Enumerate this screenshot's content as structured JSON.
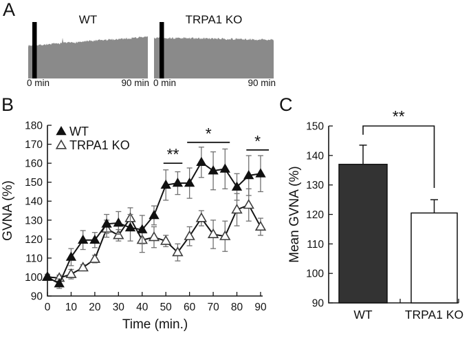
{
  "figure": {
    "background": "#ffffff",
    "text_color": "#111111"
  },
  "panels": {
    "a": {
      "label": "A",
      "trace_color": "#8a8a8a",
      "stim_bar_color": "#000000",
      "traces": [
        {
          "title": "WT",
          "start_label": "0 min",
          "end_label": "90 min"
        },
        {
          "title": "TRPA1 KO",
          "start_label": "0 min",
          "end_label": "90 min"
        }
      ]
    },
    "b": {
      "label": "B"
    },
    "c": {
      "label": "C"
    }
  },
  "chart_data": [
    {
      "panel": "B",
      "type": "line",
      "title": "",
      "xlabel": "Time (min.)",
      "ylabel": "GVNA (%)",
      "xlim": [
        0,
        90
      ],
      "ylim": [
        90,
        180
      ],
      "xticks": [
        0,
        10,
        20,
        30,
        40,
        50,
        60,
        70,
        80,
        90
      ],
      "yticks": [
        90,
        100,
        110,
        120,
        130,
        140,
        150,
        160,
        170,
        180
      ],
      "grid": false,
      "legend_position": "top-left",
      "error_bar_color": "#707070",
      "line_color": "#141414",
      "x": [
        0,
        5,
        10,
        15,
        20,
        25,
        30,
        35,
        40,
        45,
        50,
        55,
        60,
        65,
        70,
        75,
        80,
        85,
        90
      ],
      "series": [
        {
          "name": "WT",
          "marker": "filled-triangle",
          "marker_fill": "#111111",
          "marker_stroke": "#111111",
          "values": [
            100,
            96.5,
            110.5,
            119.5,
            119.5,
            128,
            128.5,
            126,
            125,
            132.5,
            148.5,
            149.5,
            149.5,
            160.5,
            156,
            157,
            147.5,
            153.5,
            154.5
          ],
          "errors": [
            1,
            2.5,
            4.5,
            5,
            4,
            5,
            6,
            7,
            7.5,
            5,
            8,
            6,
            8,
            8,
            10,
            10.5,
            7,
            10.5,
            9.5
          ]
        },
        {
          "name": "TRPA1 KO",
          "marker": "open-triangle",
          "marker_fill": "#ffffff",
          "marker_stroke": "#3d3d3d",
          "values": [
            100,
            99.5,
            101.5,
            105,
            109.5,
            125.5,
            122,
            131,
            119.5,
            121,
            119,
            113,
            121.5,
            131,
            122.5,
            121.5,
            135.5,
            138,
            126.5
          ],
          "errors": [
            1.5,
            1.5,
            2.5,
            1.5,
            2,
            4.5,
            3,
            5.5,
            6.5,
            5.5,
            3,
            4.5,
            5,
            4,
            7.5,
            8,
            8.5,
            8.5,
            4.5
          ]
        }
      ],
      "significance": [
        {
          "label": "**",
          "x_start": 49,
          "x_end": 57,
          "y": 160
        },
        {
          "label": "*",
          "x_start": 59,
          "x_end": 77,
          "y": 171
        },
        {
          "label": "*",
          "x_start": 84,
          "x_end": 93.5,
          "y": 167
        }
      ]
    },
    {
      "panel": "C",
      "type": "bar",
      "title": "",
      "xlabel": "",
      "ylabel": "Mean GVNA (%)",
      "ylim": [
        90,
        150
      ],
      "yticks": [
        90,
        100,
        110,
        120,
        130,
        140,
        150
      ],
      "grid": false,
      "categories": [
        "WT",
        "TRPA1 KO"
      ],
      "values": [
        137,
        120.5
      ],
      "errors": [
        6.5,
        4.5
      ],
      "bar_fills": [
        "#333333",
        "#ffffff"
      ],
      "bar_stroke": "#111111",
      "significance": {
        "label": "**",
        "bar_top_y": 150,
        "left_tail_y": 147,
        "right_tail_y": 129
      }
    }
  ]
}
